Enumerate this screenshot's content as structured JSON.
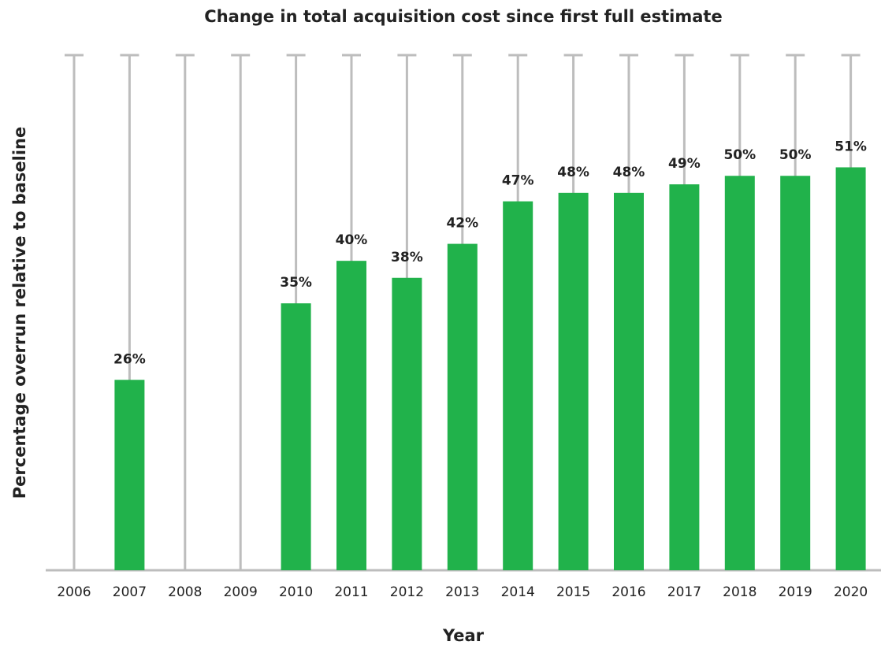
{
  "chart_data": {
    "type": "bar",
    "title": "Change in total acquisition cost since first full estimate",
    "x_label": "Year",
    "y_label": "Percentage overrun relative to baseline",
    "categories": [
      "2006",
      "2007",
      "2008",
      "2009",
      "2010",
      "2011",
      "2012",
      "2013",
      "2014",
      "2015",
      "2016",
      "2017",
      "2018",
      "2019",
      "2020"
    ],
    "values": [
      null,
      26,
      null,
      null,
      35,
      40,
      38,
      42,
      47,
      48,
      48,
      49,
      50,
      50,
      51
    ],
    "value_labels": [
      null,
      "26%",
      null,
      null,
      "35%",
      "40%",
      "38%",
      "42%",
      "47%",
      "48%",
      "48%",
      "49%",
      "50%",
      "50%",
      "51%"
    ],
    "color": "#21b24b",
    "ylim": [
      3.6,
      64.2
    ]
  }
}
